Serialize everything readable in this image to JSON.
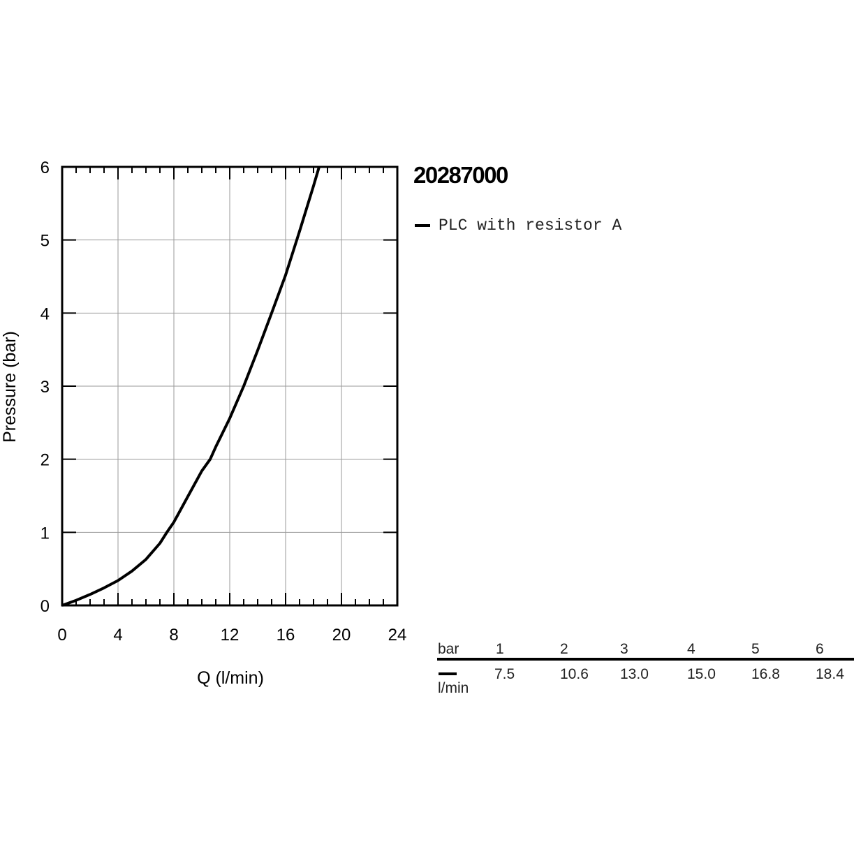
{
  "product_id": "20287000",
  "legend": {
    "series_label": "PLC with resistor A",
    "color": "#000000"
  },
  "chart_data": {
    "type": "line",
    "xlabel": "Q (l/min)",
    "ylabel": "Pressure (bar)",
    "xlim": [
      0,
      24
    ],
    "ylim": [
      0,
      6
    ],
    "x_ticks": [
      0,
      4,
      8,
      12,
      16,
      20,
      24
    ],
    "y_ticks": [
      0,
      1,
      2,
      3,
      4,
      5,
      6
    ],
    "grid": true,
    "series": [
      {
        "name": "PLC with resistor A",
        "color": "#000000",
        "x": [
          0,
          1,
          2,
          3,
          4,
          5,
          6,
          7,
          7.5,
          8,
          9,
          10,
          10.6,
          11,
          12,
          13,
          14,
          15,
          16,
          16.8,
          17,
          18,
          18.4
        ],
        "y": [
          0,
          0.07,
          0.15,
          0.24,
          0.34,
          0.47,
          0.63,
          0.85,
          1.0,
          1.14,
          1.49,
          1.84,
          2.0,
          2.17,
          2.56,
          3.0,
          3.49,
          4.0,
          4.52,
          5.0,
          5.12,
          5.74,
          6.0
        ]
      }
    ]
  },
  "flow_table": {
    "pressure_unit": "bar",
    "flow_unit": "l/min",
    "pressures": [
      "1",
      "2",
      "3",
      "4",
      "5",
      "6"
    ],
    "flows": [
      "7.5",
      "10.6",
      "13.0",
      "15.0",
      "16.8",
      "18.4"
    ]
  }
}
